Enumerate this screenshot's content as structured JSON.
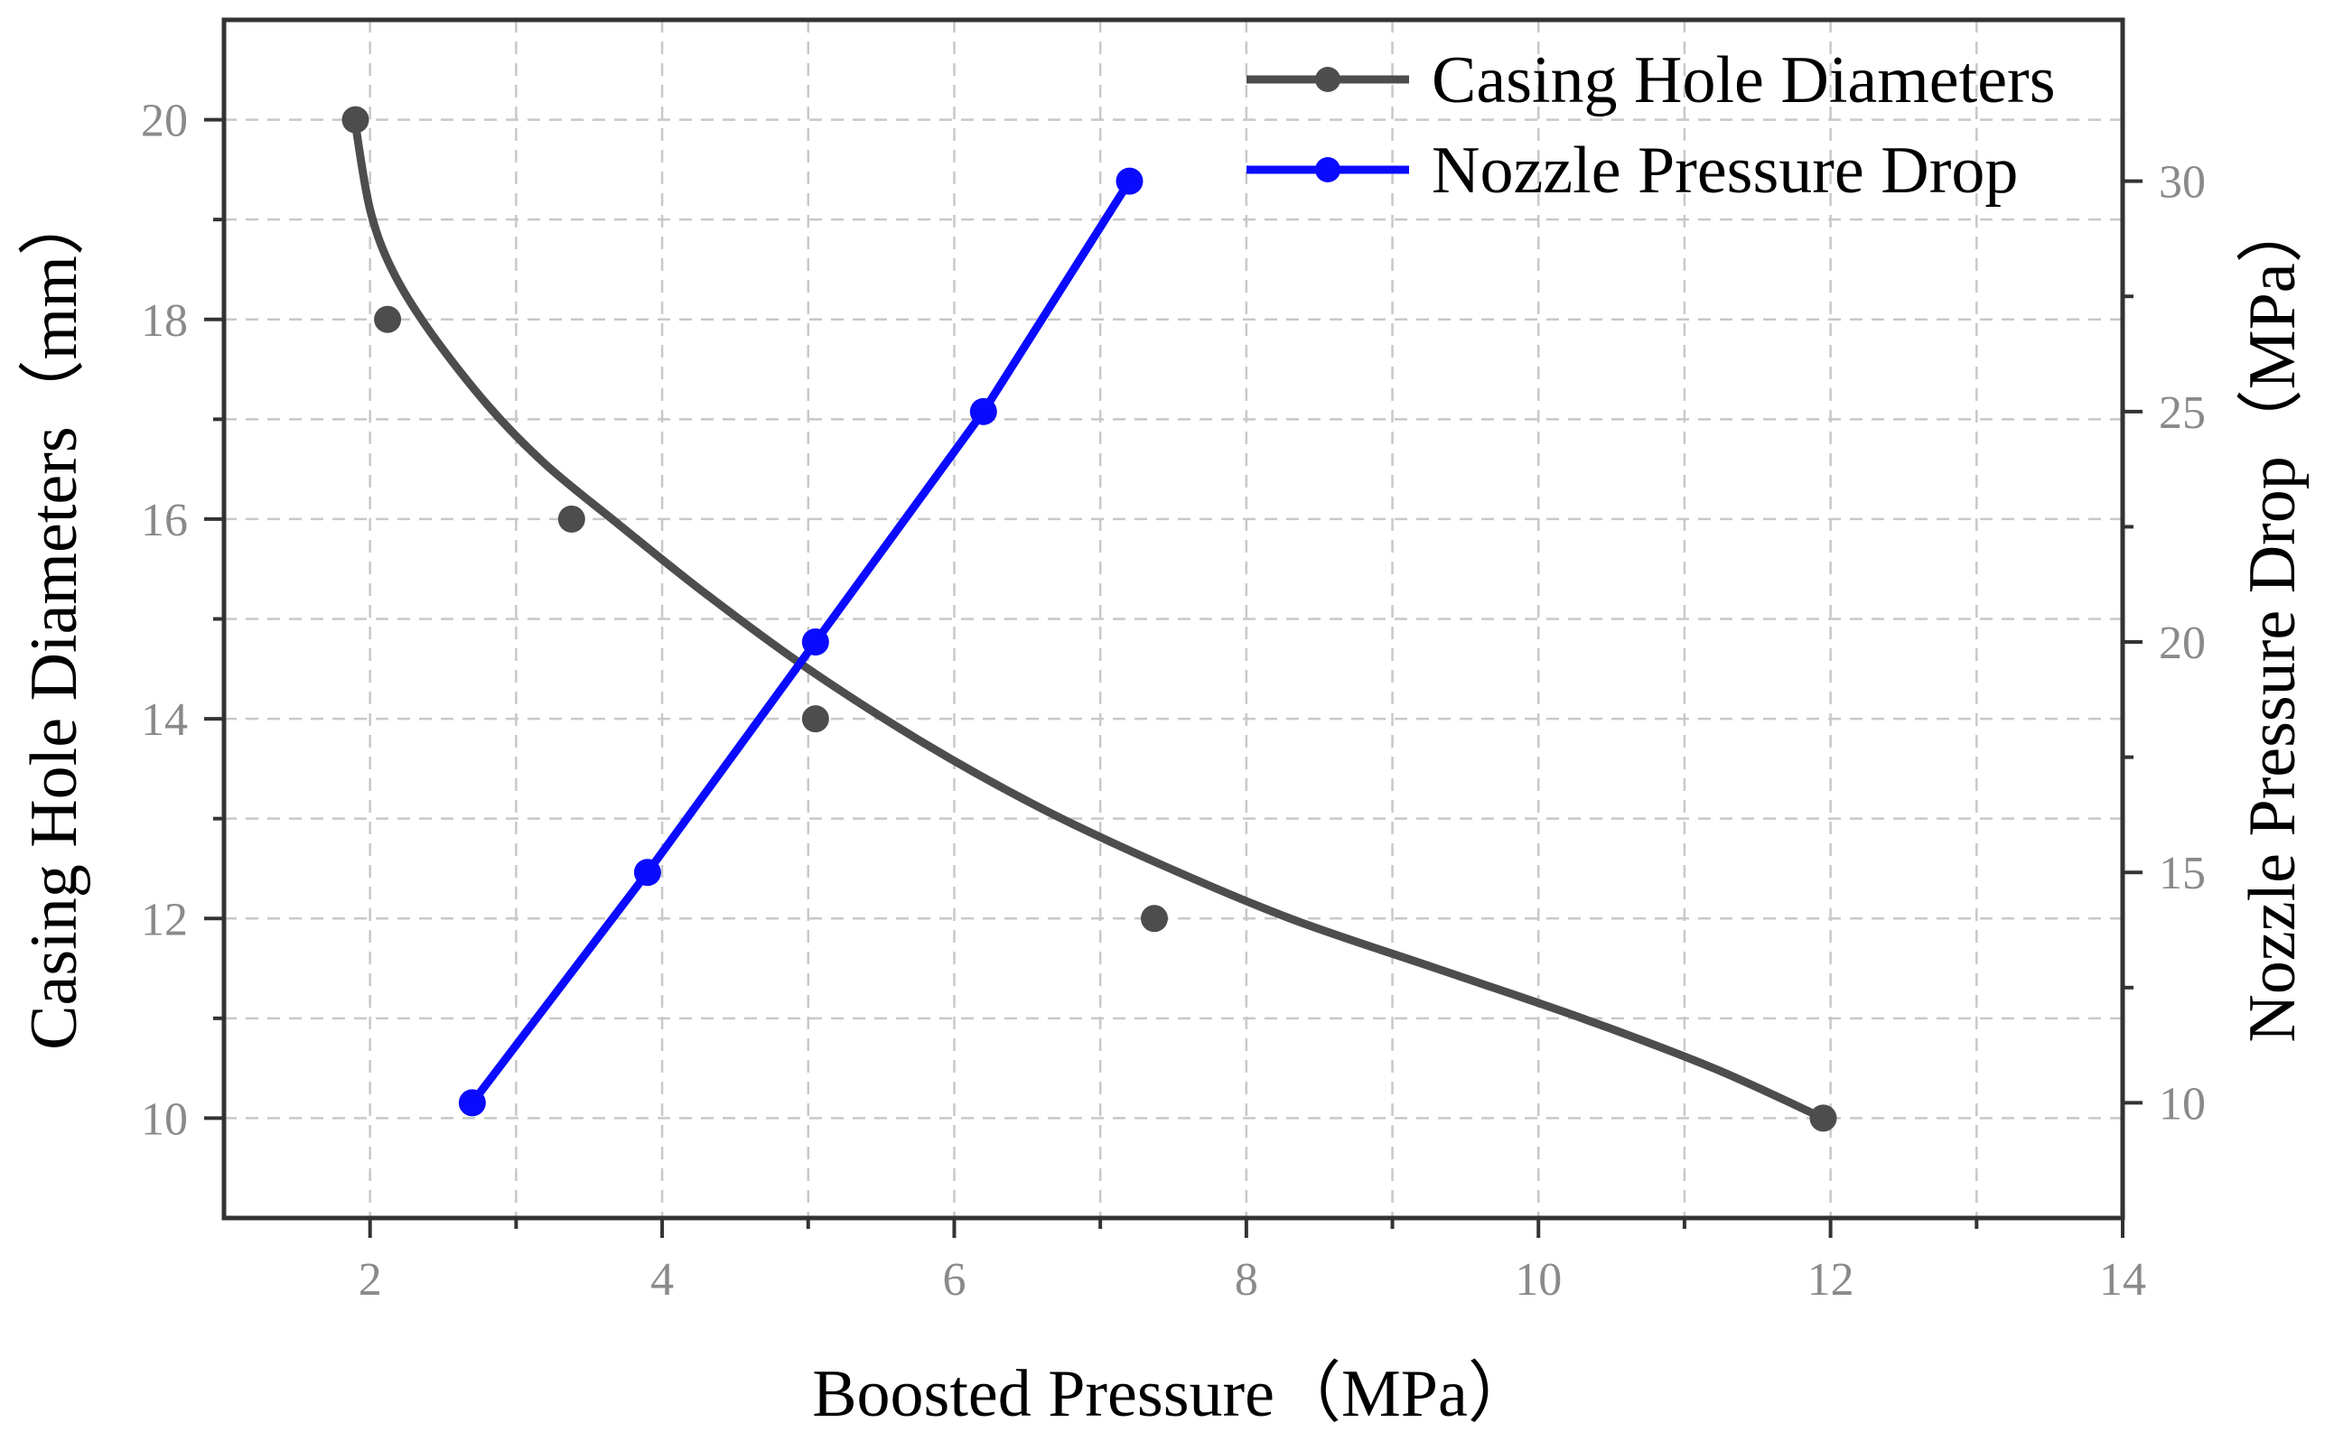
{
  "chart_data": {
    "type": "line",
    "title": "",
    "xlabel": "Boosted Pressure（MPa）",
    "ylabel_left": "Casing Hole Diameters（mm）",
    "ylabel_right": "Nozzle Pressure Drop（MPa）",
    "xlim": [
      1,
      14
    ],
    "ylim_left": [
      9,
      21
    ],
    "ylim_right": [
      7.5,
      33.5
    ],
    "x_ticks": [
      2,
      4,
      6,
      8,
      10,
      12,
      14
    ],
    "y_left_ticks": [
      10,
      12,
      14,
      16,
      18,
      20
    ],
    "y_right_ticks": [
      10,
      15,
      20,
      25,
      30
    ],
    "grid": true,
    "legend_position": "top-right",
    "series": [
      {
        "name": "Casing Hole Diameters",
        "axis": "left",
        "color": "#4d4d4d",
        "smooth": true,
        "x": [
          1.9,
          2.12,
          3.38,
          5.05,
          7.37,
          11.95
        ],
        "y": [
          20,
          18,
          16,
          14,
          12,
          10
        ],
        "fit_curve": {
          "x": [
            1.9,
            2.0,
            2.15,
            2.4,
            2.8,
            3.2,
            3.7,
            4.3,
            5.0,
            5.8,
            6.6,
            7.4,
            8.3,
            9.3,
            10.3,
            11.2,
            11.95
          ],
          "y": [
            19.95,
            19.1,
            18.5,
            17.9,
            17.15,
            16.55,
            15.95,
            15.25,
            14.5,
            13.75,
            13.1,
            12.55,
            12.0,
            11.5,
            11.0,
            10.5,
            10.0
          ]
        }
      },
      {
        "name": "Nozzle Pressure Drop",
        "axis": "right",
        "color": "#0a0aff",
        "smooth": false,
        "x": [
          2.7,
          3.9,
          5.05,
          6.2,
          7.2
        ],
        "y": [
          10,
          15,
          20,
          25,
          30
        ]
      }
    ]
  }
}
